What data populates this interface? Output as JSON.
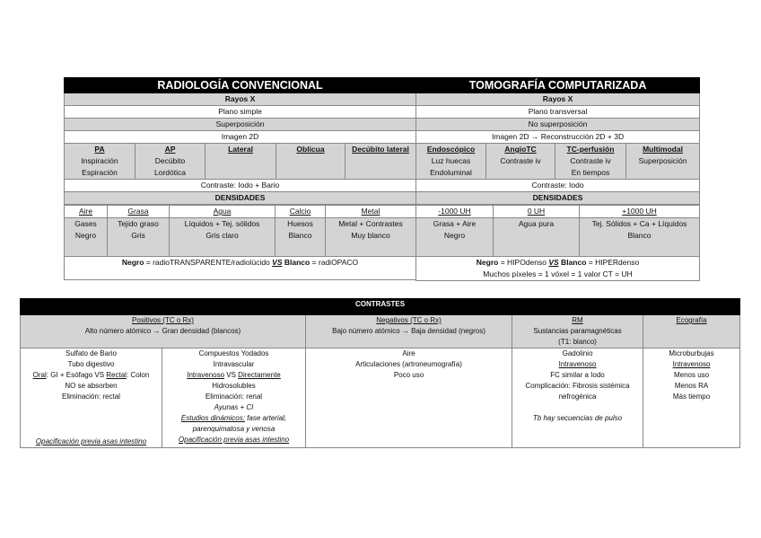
{
  "rc": {
    "title": "RADIOLOGÍA CONVENCIONAL",
    "rows": [
      "Rayos X",
      "Plano simple",
      "Superposición",
      "Imagen 2D"
    ],
    "modes": [
      {
        "h": "PA",
        "l": [
          "Inspiración",
          "Espiración"
        ]
      },
      {
        "h": "AP",
        "l": [
          "Decúbito",
          "Lordótica"
        ]
      },
      {
        "h": "Lateral",
        "l": []
      },
      {
        "h": "Oblicua",
        "l": []
      },
      {
        "h": "Decúbito lateral",
        "l": []
      }
    ],
    "contrast": "Contraste: Iodo + Bario",
    "dens_title": "DENSIDADES",
    "dens": [
      {
        "h": "Aire",
        "l": [
          "Gases",
          "Negro"
        ]
      },
      {
        "h": "Grasa",
        "l": [
          "Tejido graso",
          "Gris"
        ]
      },
      {
        "h": "Agua",
        "l": [
          "Líquidos + Tej. sólidos",
          "Gris claro"
        ]
      },
      {
        "h": "Calcio",
        "l": [
          "Huesos",
          "Blanco"
        ]
      },
      {
        "h": "Metal",
        "l": [
          "Metal + Contrastes",
          "Muy blanco"
        ]
      }
    ],
    "footer": {
      "a": "Negro",
      "b": " = radioTRANSPARENTE/radiolúcido ",
      "vs": "VS",
      "c": " Blanco",
      "d": " = radiOPACO"
    }
  },
  "tc": {
    "title": "TOMOGRAFÍA COMPUTARIZADA",
    "rows": [
      "Rayos X",
      "Plano transversal",
      "No superposición",
      "Imagen 2D → Reconstrucción 2D + 3D"
    ],
    "modes": [
      {
        "h": "Endoscópico",
        "l": [
          "Luz huecas",
          "Endoluminal"
        ]
      },
      {
        "h": "AngioTC",
        "l": [
          "Contraste iv"
        ]
      },
      {
        "h": "TC-perfusión",
        "l": [
          "Contraste iv",
          "En tiempos"
        ]
      },
      {
        "h": "Multimodal",
        "l": [
          "Superposición"
        ]
      }
    ],
    "contrast": "Contraste: Iodo",
    "dens_title": "DENSIDADES",
    "dens": [
      {
        "h": "-1000 UH",
        "l": [
          "Grasa + Aire",
          "Negro"
        ]
      },
      {
        "h": "0 UH",
        "l": [
          "Agua pura"
        ]
      },
      {
        "h": "+1000 UH",
        "l": [
          "Tej. Sólidos + Ca + Líquidos",
          "Blanco"
        ]
      }
    ],
    "footer": {
      "a": "Negro",
      "b": " = HIPOdenso ",
      "vs": "VS",
      "c": " Blanco",
      "d": " = HIPERdenso",
      "line2": "Muchos píxeles = 1 vóxel = 1 valor CT = UH"
    }
  },
  "contrastes": {
    "title": "CONTRASTES",
    "pos": {
      "h": "Positivos (TC o Rx)",
      "sub": "Alto número atómico → Gran densidad (blancos)"
    },
    "neg": {
      "h": "Negativos (TC o Rx)",
      "sub": "Bajo número atómico → Baja densidad (negros)"
    },
    "rm": {
      "h": "RM",
      "sub": "Sustancias paramagnéticas",
      "sub2": "(T1: blanco)"
    },
    "eco": {
      "h": "Ecografía"
    },
    "bario": {
      "l1": "Sulfato de Bario",
      "l2": "Tubo digestivo",
      "oral": "Oral",
      "l3a": ": GI + Esófago VS ",
      "rectal": "Rectal",
      "l3b": ": Colon",
      "l4": "NO se absorben",
      "l5": "Eliminación: rectal",
      "foot": "Opacificación previa asas intestino"
    },
    "yodo": {
      "l1": "Compuestos Yodados",
      "l2": "Intravascular",
      "iv": "Intravenoso",
      "vs": " VS ",
      "dir": "Directamente",
      "l4": "Hidrosolubles",
      "l5": "Eliminación: renal",
      "l6": "Ayunas + CI",
      "din": "Estudios dinámicos:",
      "din2": " fase arterial,",
      "l8": "parenquimatosa y venosa",
      "foot": "Opacificación previa asas intestino"
    },
    "negbody": [
      "Aire",
      "Articulaciones (artroneumografía)",
      "Poco uso"
    ],
    "rmbody": {
      "l1": "Gadolinio",
      "l2": "Intravenoso",
      "l3": "FC similar a Iodo",
      "l4": "Complicación: Fibrosis sistémica",
      "l5": "nefrogénica",
      "note": "Tb hay secuencias de pulso"
    },
    "ecobody": {
      "l1": "Microburbujas",
      "l2": "Intravenoso",
      "l3": "Menos uso",
      "l4": "Menos RA",
      "l5": "Más tiempo"
    }
  }
}
